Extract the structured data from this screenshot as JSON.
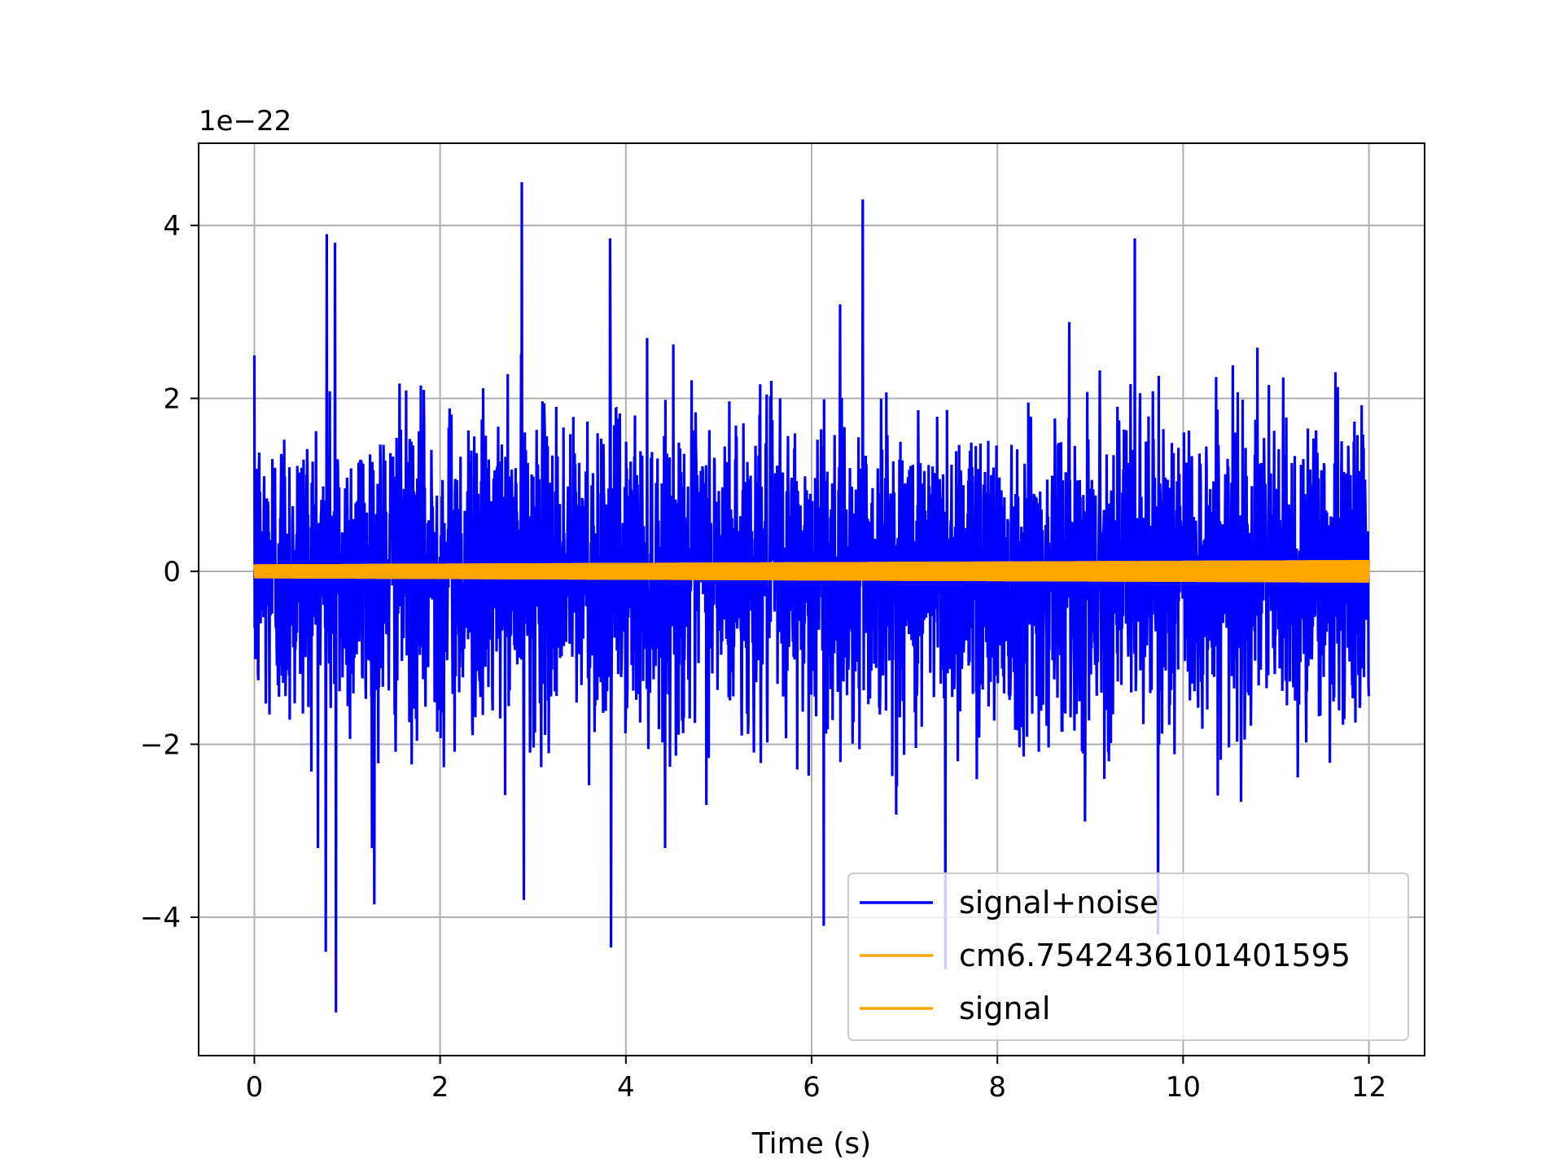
{
  "chart_data": {
    "type": "line",
    "title": "",
    "xlabel": "Time (s)",
    "ylabel": "",
    "y_offset_label": "1e−22",
    "xlim": [
      -0.6,
      12.6
    ],
    "ylim": [
      -5.6,
      4.95
    ],
    "x_ticks": [
      0,
      2,
      4,
      6,
      8,
      10,
      12
    ],
    "x_tick_labels": [
      "0",
      "2",
      "4",
      "6",
      "8",
      "10",
      "12"
    ],
    "y_ticks": [
      -4,
      -2,
      0,
      2,
      4
    ],
    "y_tick_labels": [
      "−4",
      "−2",
      "0",
      "2",
      "4"
    ],
    "grid": true,
    "legend_position": "lower right",
    "series": [
      {
        "name": "signal+noise",
        "color": "#0000ff",
        "x_range": [
          0,
          12
        ],
        "typical_amplitude": 2.0,
        "max": 4.5,
        "min": -5.1,
        "peaks": [
          {
            "x": 0.78,
            "y": 3.9
          },
          {
            "x": 0.87,
            "y": 3.8
          },
          {
            "x": 2.88,
            "y": 4.5
          },
          {
            "x": 3.83,
            "y": 3.85
          },
          {
            "x": 6.55,
            "y": 4.3
          },
          {
            "x": 9.48,
            "y": 3.85
          },
          {
            "x": 0.77,
            "y": -4.4
          },
          {
            "x": 0.88,
            "y": -5.1
          },
          {
            "x": 1.29,
            "y": -3.85
          },
          {
            "x": 3.84,
            "y": -4.35
          },
          {
            "x": 6.13,
            "y": -4.1
          },
          {
            "x": 7.44,
            "y": -4.6
          },
          {
            "x": 9.73,
            "y": -4.2
          },
          {
            "x": 2.9,
            "y": -3.8
          }
        ]
      },
      {
        "name": "cm6.7542436101401595",
        "color": "#ffa500",
        "x_range": [
          0,
          12
        ],
        "amplitude_start": 0.08,
        "amplitude_end": 0.13
      },
      {
        "name": "signal",
        "color": "#ffa500",
        "x_range": [
          0,
          12
        ],
        "amplitude_start": 0.08,
        "amplitude_end": 0.13
      }
    ]
  }
}
